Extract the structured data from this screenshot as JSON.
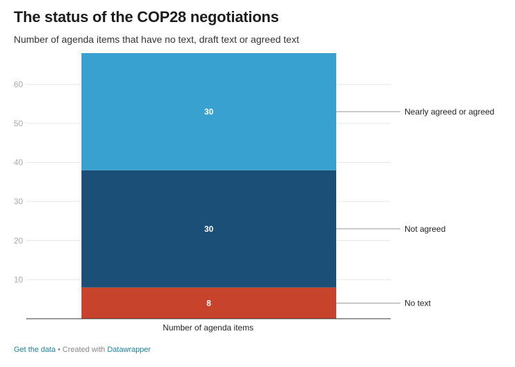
{
  "title": "The status of the COP28 negotiations",
  "subtitle": "Number of agenda items that have no text, draft text or agreed text",
  "footer": {
    "get_data": "Get the data",
    "separator": " • Created with ",
    "tool": "Datawrapper"
  },
  "colors": {
    "nearly_agreed_or_agreed": "#38a1d0",
    "not_agreed": "#1b4f78",
    "no_text": "#c8432c",
    "grid": "#e6e6e6",
    "baseline": "#333333",
    "tick_label": "#aaaaaa",
    "leader_line": "#999999"
  },
  "chart_data": {
    "type": "bar",
    "stacked": true,
    "categories": [
      "Number of agenda items"
    ],
    "series": [
      {
        "name": "No text",
        "values": [
          8
        ]
      },
      {
        "name": "Not agreed",
        "values": [
          30
        ]
      },
      {
        "name": "Nearly agreed or agreed",
        "values": [
          30
        ]
      }
    ],
    "data_labels": [
      "8",
      "30",
      "30"
    ],
    "y_ticks": [
      10,
      20,
      30,
      40,
      50,
      60
    ],
    "ylim": [
      0,
      68
    ],
    "grid": true,
    "legend": "direct labels right"
  }
}
